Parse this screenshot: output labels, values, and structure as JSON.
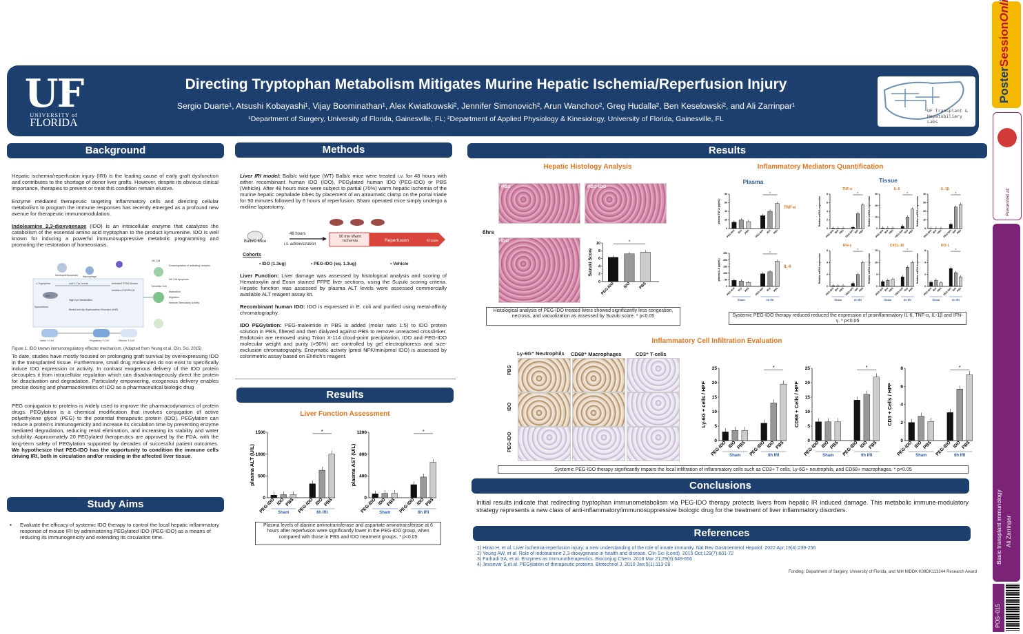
{
  "header": {
    "logo_big": "UF",
    "logo_small1": "UNIVERSITY of",
    "logo_small2": "FLORIDA",
    "title": "Directing Tryptophan Metabolism Mitigates Murine Hepatic Ischemia/Reperfusion Injury",
    "authors": "Sergio Duarte¹, Atsushi Kobayashi¹, Vijay Boominathan¹, Alex Kwiatkowski², Jennifer Simonovich², Arun Wanchoo², Greg Hudalla², Ben Keselowski², and Ali Zarrinpar¹",
    "affiliations": "¹Department of Surgery, University of Florida, Gainesville, FL; ²Department of Applied Physiology & Kinesiology, University of Florida, Gainesville, FL",
    "lab_logo_line1": "UF Transplant &",
    "lab_logo_line2": "Hepatobiliary Labs"
  },
  "sections": {
    "background": "Background",
    "study_aims": "Study Aims",
    "methods": "Methods",
    "results_left": "Results",
    "results_right": "Results",
    "conclusions": "Conclusions",
    "references": "References"
  },
  "background": {
    "p1": "Hepatic ischemia/reperfusion injury (IRI) is the leading cause of early graft dysfunction and contributes to the shortage of donor liver grafts. However, despite its obvious clinical importance, therapies to prevent or treat this condition remain elusive.",
    "p2": "Enzyme mediated therapeutic targeting inflammatory cells and directing cellular metabolism to program the immune responses has recently emerged as a profound new avenue for therapeutic immunomodulation.",
    "p3_bold": "Indoleamine 2,3-dioxygenase",
    "p3_rest": " (IDO) is an intracellular enzyme that catalyzes the catabolism of the essential amino acid tryptophan to the product kynurenine. IDO is well known for inducing a powerful immunosuppressive metabolic programming and promoting the restoration of homeostasis.",
    "fig_caption": "Figure 1. IDO known immunoregulatory effector mechanism. (Adapted from Yeung et al. Clin. Sci. 2015)",
    "p4": "To date, studies have mostly focused on prolonging graft survival by overexpressing IDO in the transplanted tissue. Furthermore, small drug molecules do not exist to specifically induce IDO expression or activity. In contrast exogenous delivery of the IDO protein decouples it from intracellular regulation which can disadvantageously direct the protein for deactivation and degradation. Particularly empowering, exogenous delivery enables precise dosing and pharmacokinetics of IDO as a pharmaceutical biologic drug",
    "p5": "PEG conjugation to proteins is widely used to improve the pharmacodynamics of protein drugs. PEGylation is a chemical modification that involves conjugation of active polyethylene glycol (PEG) to the potential therapeutic protein (IDO). PEGylation can reduce a protein's immunogenicity and increase its circulation time by preventing enzyme mediated degradation, reducing renal elimination, and increasing its stability and water solubility. Approximately 20 PEGylated therapeutics are approved by the FDA, with the long-term safety of PEGylation supported by decades of successful patient outcomes.",
    "p5_bold": " We hypothesize that PEG-IDO has the opportunity to condition the immune cells driving IRI, both in circulation and/or residing in the affected liver tissue",
    "p5_end": ".",
    "diagram_labels": [
      "Neutrophil Apoptosis",
      "Macrophage",
      "NK Cell",
      "Downregulation of activating receptors",
      "NK Cell Apoptosis",
      "L-Tryptophan",
      "Low L-Trp Levels",
      "Activated GCN2 Kinase",
      "Inhibits mTOR/PKCθ",
      "IDO",
      "High Kyn Metabolites",
      "Kynurenines",
      "Binds/ Acti Aryl Hydrocarbon Receptor (AhR)",
      "Dendritic Cell",
      "Maturation",
      "Migration",
      "Immune Stimulatory Activity",
      "Naive T-Cell",
      "Regulatory T-Cell",
      "Effector T-Cell"
    ]
  },
  "study_aims": {
    "bullet": "Evaluate the efficacy of systemic IDO therapy to control the local hepatic inflammatory response of mouse IRI by administering PEGylated IDO (PEG-IDO) as a means of reducing its immunogenicity and extending its circulation time."
  },
  "methods": {
    "m1_bold": "Liver IRI model:",
    "m1": " Balb/c wild-type (WT) Balb/c mice were treated i.v. for 48 hours with either recombinant human IDO (IDO), PEGylated human IDO (PEG-IDO) or PBS (Vehicle). After 48 hours mice were subject to partial (70%) warm hepatic ischemia of the murine hepatic cephalade lobes by placement of an atraumatic clamp on the portal triade for 90 minutes followed by 6 hours of reperfusion. Sham operated mice simply undergo a midline laparotomy.",
    "timeline": {
      "mouse": "Balb/C Mice",
      "h48": "48 hours",
      "iv": "i.v. administration",
      "ischemia": "90 min Warm Ischemia",
      "reperfusion": "Reperfusion",
      "hours6": "6 hours"
    },
    "cohorts_title": "Cohorts",
    "cohorts": [
      "IDO (1.3ug)",
      "PEG-IDO (eq. 1.3ug)",
      "Vehicle"
    ],
    "m2_bold": "Liver Function:",
    "m2": " Liver damage was assessed by histological analysis and scoring of Hematoxylin and Eosin stained FFPE liver sections, using the Suzuki scoring criteria. Hepatic function was assessed by plasma ALT levels were assessed commercially available ALT reagent assay kit.",
    "m3_bold": "Recombinant human IDO:",
    "m3": " IDO is expressed in E. coli and purified using metal-affinity chromatography.",
    "m4_bold": "IDO PEGylation:",
    "m4": " PEG-maleimide in PBS is added (molar ratio 1:5) to IDO protein solution in PBS, filtered and then dialyzed against PBS to remove unreacted crosslinker. Endotoxin are removed using Triton X-114 cloud-point precipitation. IDO and PEG-IDO molecular weight and purity (>90%) are controlled by gel electrophoresis and size-exclusion chromatography. Enzymatic activity (pmol NFK/min/pmol IDO) is assessed by colorimetric assay based on Ehrlich's reagent."
  },
  "liver_function": {
    "title": "Liver Function Assessment",
    "caption": "Plasma levels of alanine aminotransferase and aspartate aminotransferase at 6 hours after reperfusion were significantly lower in the PEG-IDO group, when compared with those in PBS and IDO treatment groups. * p<0.05"
  },
  "histology": {
    "title": "Hepatic Histology Analysis",
    "row_label": "6hrs",
    "panel_labels": [
      "PBS",
      "PEG-IDO",
      "IDO"
    ],
    "caption": "Histological analysis of PEG-IDO treated livers showed significantly less congestion, necrosis, and vacuolization as assessed by Suzuki score. * p<0.05"
  },
  "mediators": {
    "title": "Inflammatory Mediators Quantification",
    "plasma_label": "Plasma",
    "tissue_label": "Tissue",
    "caption": "Systemic PEG-IDO therapy reduced reduced the expression of proinflammatory IL-6, TNF-α, IL-1β and IFN-γ. * p<0.05",
    "tnf_label": "TNF-α",
    "il6_label": "IL-6"
  },
  "infiltration": {
    "title": "Inflammatory Cell Infiltration Evaluation",
    "col_labels": [
      "Ly-6G⁺ Neutrophils",
      "CD68⁺ Macrophages",
      "CD3⁺ T-cells"
    ],
    "row_labels": [
      "PBS",
      "IDO",
      "PEG-IDO"
    ],
    "caption": "Systemic PEG-IDO therapy significantly impairs the local infiltration of inflammatory cells such as CD3+ T cells, Ly-6G+ neutrophils, and CD68+ macrophages. * p<0.05"
  },
  "conclusions": {
    "text": "Initial results indicate that redirecting tryptophan immunometabolism via PEG-IDO therapy protects livers from hepatic IR induced damage. This metabolic immune-modulatory strategy represents a new class of anti-inflammatory/immunosuppressive biologic drug for the treatment of liver inflammatory disorders."
  },
  "references": {
    "items": [
      "1) Hirao H, et al. Liver ischemia-reperfusion injury: a new understanding of the role of innate immunity. Nat Rev Gastroenterol Hepatol. 2022 Apr;19(4):239-256",
      "2) Yeung AW, et al. Role of indoleamine 2,3-dioxygenase in health and disease. Clin Sci (Lond). 2015 Oct;129(7):601-72",
      "3) Farhadi SA, et al. Enzymes as Immunotherapeutics. Bioconjug Chem. 2018 Mar 21;29(3):649-656",
      "4) Jevsevar S,et al. PEGylation of therapeutic proteins. Biotechnol J. 2010 Jan;5(1):113-28"
    ],
    "funding": "Funding: Department of Surgery, University of Florida, and NIH NIDDK K08DK113244 Research Award"
  },
  "sidebar": {
    "brand1": "Poster",
    "brand2": "Session",
    "brand3": "Online",
    "presented_at": "Presented at:",
    "category": "Basic transplant immunology",
    "author": "Ali Zarrinpar",
    "poster_id": "POS–015"
  },
  "chart_data": [
    {
      "id": "alt",
      "type": "bar",
      "ylabel": "plasma ALT (U/L)",
      "ylim": [
        0,
        1500
      ],
      "yticks": [
        0,
        500,
        1000,
        1500
      ],
      "categories": [
        "PEG-IDO",
        "IDO",
        "PBS",
        "PEG-IDO",
        "IDO",
        "PBS"
      ],
      "values": [
        60,
        70,
        70,
        320,
        630,
        1000
      ],
      "groups": [
        {
          "label": "Sham",
          "span": [
            0,
            2
          ]
        },
        {
          "label": "6h IRI",
          "span": [
            3,
            5
          ]
        }
      ],
      "star": "*"
    },
    {
      "id": "ast",
      "type": "bar",
      "ylabel": "plasma AST (U/L)",
      "ylim": [
        0,
        1200
      ],
      "yticks": [
        0,
        400,
        800,
        1200
      ],
      "categories": [
        "PEG-IDO",
        "IDO",
        "PBS",
        "PEG-IDO",
        "IDO",
        "PBS"
      ],
      "values": [
        70,
        80,
        80,
        240,
        380,
        650
      ],
      "groups": [
        {
          "label": "Sham",
          "span": [
            0,
            2
          ]
        },
        {
          "label": "6h IRI",
          "span": [
            3,
            5
          ]
        }
      ],
      "star": "*"
    },
    {
      "id": "suzuki",
      "type": "bar",
      "ylabel": "Suzuki Score",
      "ylim": [
        0,
        10
      ],
      "yticks": [
        0,
        2,
        4,
        6,
        8,
        10
      ],
      "categories": [
        "PEG-IDO",
        "IDO",
        "PBS"
      ],
      "values": [
        6.3,
        7.2,
        7.6
      ],
      "groups": [],
      "star": "*"
    },
    {
      "id": "plasma_tnf",
      "type": "bar",
      "ylabel": "plasma TNF-α (pg/mL)",
      "ylim": [
        0,
        80
      ],
      "yticks": [
        0,
        20,
        40,
        60,
        80
      ],
      "categories": [
        "PEG-IDO",
        "IDO",
        "PBS",
        "PEG-IDO",
        "IDO",
        "PBS"
      ],
      "values": [
        15,
        20,
        16,
        30,
        40,
        58
      ],
      "groups": [],
      "star": "*"
    },
    {
      "id": "plasma_il6",
      "type": "bar",
      "ylabel": "plasma IL-6 (pg/mL)",
      "ylim": [
        0,
        250
      ],
      "yticks": [
        0,
        50,
        100,
        150,
        200,
        250
      ],
      "categories": [
        "PEG-IDO",
        "IDO",
        "PBS",
        "PEG-IDO",
        "IDO",
        "PBS"
      ],
      "values": [
        45,
        40,
        30,
        95,
        110,
        190
      ],
      "groups": [
        {
          "label": "Sham",
          "span": [
            0,
            2
          ]
        },
        {
          "label": "6h IRI",
          "span": [
            3,
            5
          ]
        }
      ],
      "star": "*"
    },
    {
      "id": "tnf",
      "title": "TNF-α",
      "type": "bar",
      "ylabel": "Relative mRNA expression",
      "ylim": [
        0,
        8
      ],
      "yticks": [
        0,
        2,
        4,
        6,
        8
      ],
      "categories": [
        "PEG-IDO",
        "IDO",
        "PBS",
        "PEG-IDO",
        "IDO",
        "PBS"
      ],
      "values": [
        0.1,
        0.1,
        0.1,
        0.3,
        3.5,
        5.5
      ],
      "groups": [],
      "star": "*"
    },
    {
      "id": "il6",
      "title": "IL-6",
      "type": "bar",
      "ylabel": "Relative mRNA expression",
      "ylim": [
        0,
        30
      ],
      "yticks": [
        0,
        10,
        20,
        30
      ],
      "categories": [
        "PEG-IDO",
        "IDO",
        "PBS",
        "PEG-IDO",
        "IDO",
        "PBS"
      ],
      "values": [
        0.5,
        0.5,
        0.5,
        2,
        10,
        17
      ],
      "groups": [],
      "star": "*"
    },
    {
      "id": "il1b",
      "title": "IL-1β",
      "type": "bar",
      "ylabel": "Relative mRNA expression",
      "ylim": [
        0,
        40
      ],
      "yticks": [
        0,
        10,
        20,
        30,
        40
      ],
      "categories": [
        "PEG-IDO",
        "IDO",
        "PBS",
        "PEG-IDO",
        "IDO",
        "PBS"
      ],
      "values": [
        0.2,
        0.2,
        0.2,
        5,
        25,
        28
      ],
      "groups": [],
      "star": "*"
    },
    {
      "id": "ifng",
      "title": "IFN-γ",
      "type": "bar",
      "ylabel": "Relative mRNA expression",
      "ylim": [
        0,
        6
      ],
      "yticks": [
        0,
        2,
        4,
        6
      ],
      "categories": [
        "PEG-IDO",
        "IDO",
        "PBS",
        "PEG-IDO",
        "IDO",
        "PBS"
      ],
      "values": [
        0.1,
        0.1,
        0.1,
        0.5,
        2,
        4
      ],
      "groups": [
        {
          "label": "Sham",
          "span": [
            0,
            2
          ]
        },
        {
          "label": "6h IRI",
          "span": [
            3,
            5
          ]
        }
      ],
      "star": "*"
    },
    {
      "id": "cxcl10",
      "title": "CXCL-10",
      "type": "bar",
      "ylabel": "Relative mRNA expression",
      "ylim": [
        0,
        15
      ],
      "yticks": [
        0,
        5,
        10,
        15
      ],
      "categories": [
        "PEG-IDO",
        "IDO",
        "PBS",
        "PEG-IDO",
        "IDO",
        "PBS"
      ],
      "values": [
        2,
        2.5,
        3,
        4,
        8,
        10
      ],
      "groups": [
        {
          "label": "Sham",
          "span": [
            0,
            2
          ]
        },
        {
          "label": "6h IRI",
          "span": [
            3,
            5
          ]
        }
      ],
      "star": "*"
    },
    {
      "id": "ho1",
      "title": "HO-1",
      "type": "bar",
      "ylabel": "Relative mRNA expression",
      "ylim": [
        0,
        6
      ],
      "yticks": [
        0,
        2,
        4,
        6
      ],
      "categories": [
        "PEG-IDO",
        "IDO",
        "PBS",
        "PEG-IDO",
        "IDO",
        "PBS"
      ],
      "values": [
        0.7,
        1,
        0.6,
        3,
        2.3,
        1.6
      ],
      "groups": [
        {
          "label": "Sham",
          "span": [
            0,
            2
          ]
        },
        {
          "label": "6h IRI",
          "span": [
            3,
            5
          ]
        }
      ],
      "star": "*"
    },
    {
      "id": "ly6g",
      "type": "bar",
      "ylabel": "Ly-6G + cells / HPF",
      "ylim": [
        0,
        25
      ],
      "yticks": [
        0,
        5,
        10,
        15,
        20,
        25
      ],
      "categories": [
        "PEG-IDO",
        "IDO",
        "PBS",
        "PEG-IDO",
        "IDO",
        "PBS"
      ],
      "values": [
        3,
        3.5,
        3.5,
        6,
        13,
        19.5
      ],
      "groups": [
        {
          "label": "Sham",
          "span": [
            0,
            2
          ]
        },
        {
          "label": "6h IRI",
          "span": [
            3,
            5
          ]
        }
      ],
      "star": "*"
    },
    {
      "id": "cd68",
      "type": "bar",
      "ylabel": "CD68 + Cells / HPF",
      "ylim": [
        0,
        25
      ],
      "yticks": [
        0,
        5,
        10,
        15,
        20,
        25
      ],
      "categories": [
        "PEG-IDO",
        "IDO",
        "PBS",
        "PEG-IDO",
        "IDO",
        "PBS"
      ],
      "values": [
        6.5,
        6.5,
        6.5,
        14,
        16,
        22
      ],
      "groups": [
        {
          "label": "Sham",
          "span": [
            0,
            2
          ]
        },
        {
          "label": "6h IRI",
          "span": [
            3,
            5
          ]
        }
      ],
      "star": "*"
    },
    {
      "id": "cd3",
      "type": "bar",
      "ylabel": "CD3 + Cells / HPF",
      "ylim": [
        0,
        8
      ],
      "yticks": [
        0,
        2,
        4,
        6,
        8
      ],
      "categories": [
        "PEG-IDO",
        "IDO",
        "PBS",
        "PEG-IDO",
        "IDO",
        "PBS"
      ],
      "values": [
        2,
        2.7,
        2.1,
        3.1,
        5.7,
        7.3
      ],
      "groups": [
        {
          "label": "Sham",
          "span": [
            0,
            2
          ]
        },
        {
          "label": "6h IRI",
          "span": [
            3,
            5
          ]
        }
      ],
      "star": "*"
    }
  ]
}
